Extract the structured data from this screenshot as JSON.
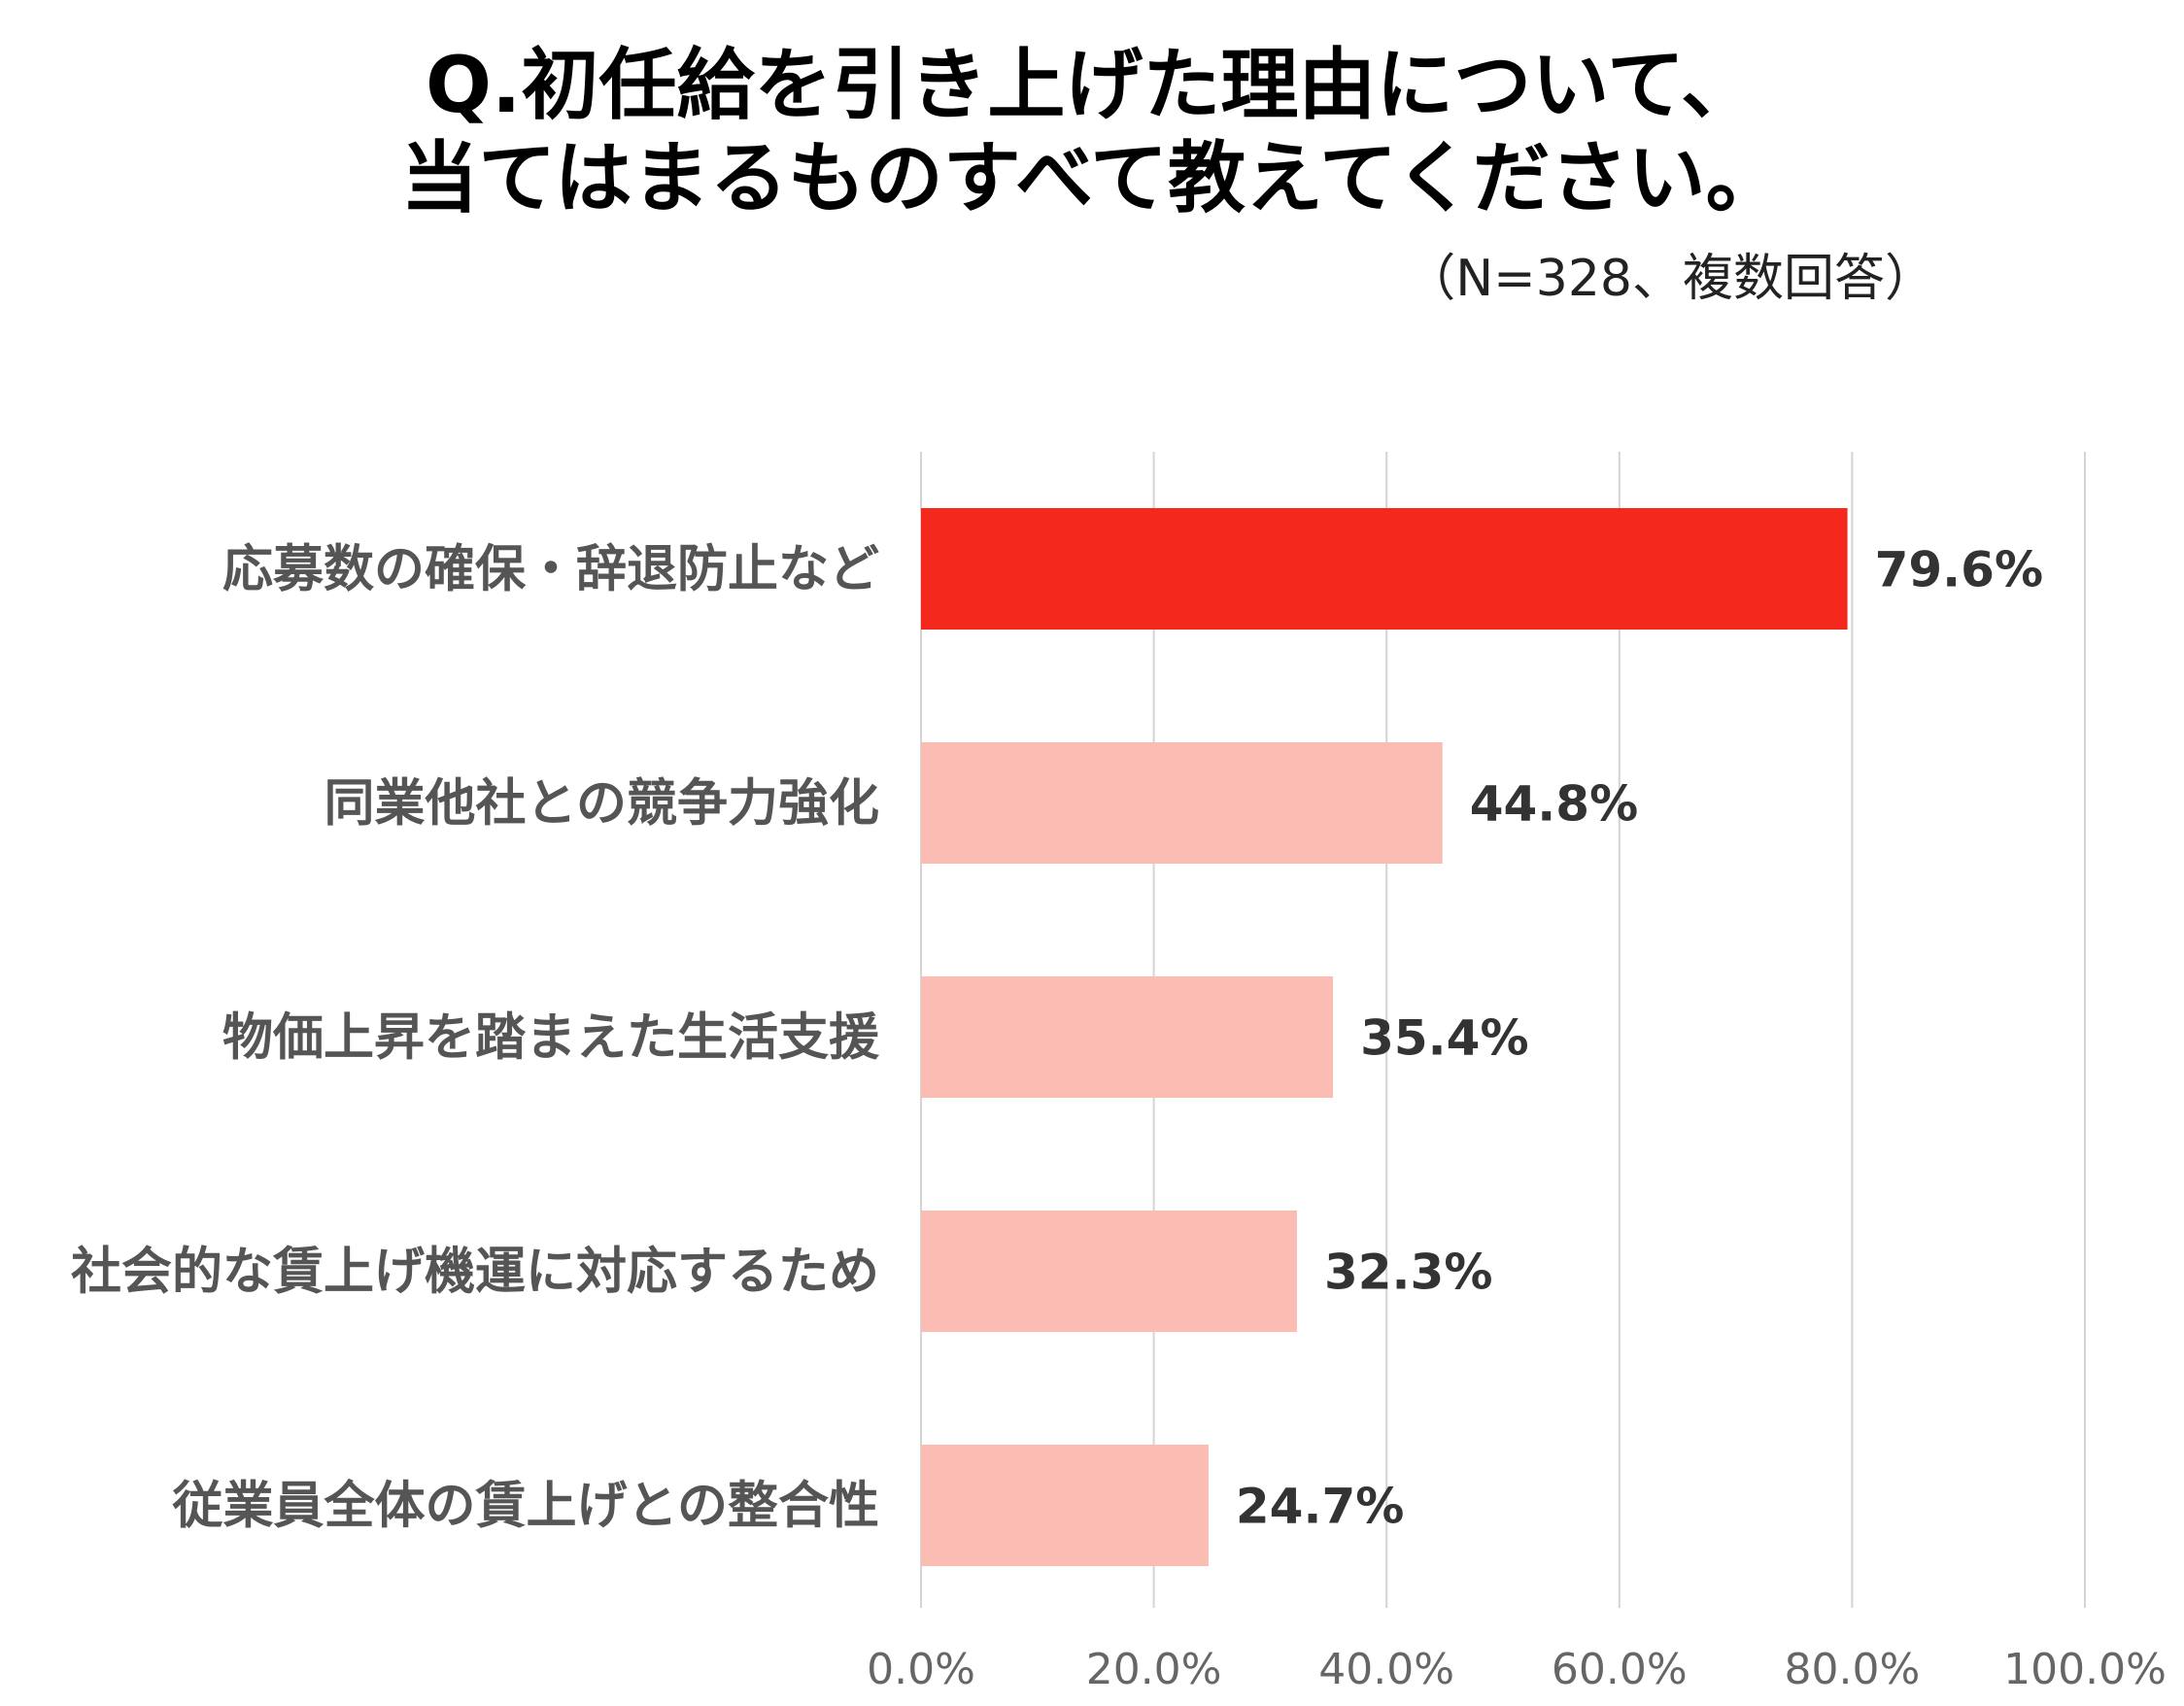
{
  "header": {
    "title_line1": "Q.初任給を引き上げた理由について、",
    "title_line2": "当てはまるものすべて教えてください。",
    "note": "（N=328、複数回答）"
  },
  "colors": {
    "highlight": "#f5281d",
    "normal": "#fbbcb3",
    "grid": "#d4d4d4"
  },
  "chart_data": {
    "type": "bar",
    "orientation": "horizontal",
    "title": "Q.初任給を引き上げた理由について、当てはまるものすべて教えてください。",
    "categories": [
      "応募数の確保・辞退防止など",
      "同業他社との競争力強化",
      "物価上昇を踏まえた生活支援",
      "社会的な賃上げ機運に対応するため",
      "従業員全体の賃上げとの整合性"
    ],
    "values": [
      79.6,
      44.8,
      35.4,
      32.3,
      24.7
    ],
    "value_labels": [
      "79.6%",
      "44.8%",
      "35.4%",
      "32.3%",
      "24.7%"
    ],
    "highlight_index": 0,
    "xlim": [
      0,
      100
    ],
    "ticks": [
      0,
      20,
      40,
      60,
      80,
      100
    ],
    "tick_labels": [
      "0.0%",
      "20.0%",
      "40.0%",
      "60.0%",
      "80.0%",
      "100.0%"
    ],
    "xlabel": "",
    "ylabel": "",
    "grid": true
  }
}
